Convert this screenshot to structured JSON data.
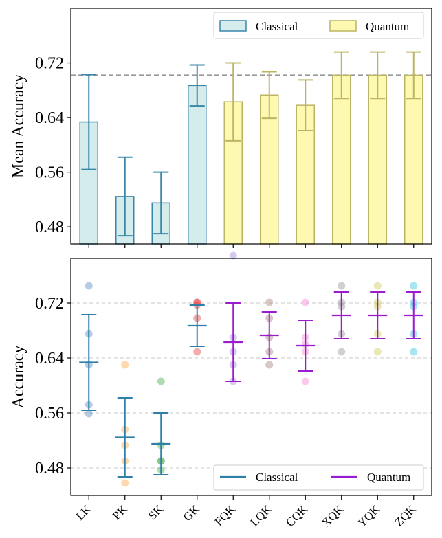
{
  "chart_data": [
    {
      "type": "bar",
      "title": "",
      "xlabel": "",
      "ylabel": "Mean Accuracy",
      "ylim": [
        0.455,
        0.8
      ],
      "yticks": [
        0.48,
        0.56,
        0.64,
        0.72
      ],
      "ytick_labels": [
        "0.48",
        "0.56",
        "0.64",
        "0.72"
      ],
      "categories": [
        "LK",
        "PK",
        "SK",
        "GK",
        "FQK",
        "LQK",
        "CQK",
        "XQK",
        "YQK",
        "ZQK"
      ],
      "groups": [
        "Classical",
        "Classical",
        "Classical",
        "Classical",
        "Quantum",
        "Quantum",
        "Quantum",
        "Quantum",
        "Quantum",
        "Quantum"
      ],
      "values": [
        0.6335,
        0.5245,
        0.515,
        0.687,
        0.663,
        0.673,
        0.658,
        0.702,
        0.702,
        0.702
      ],
      "errors": [
        0.0695,
        0.0575,
        0.045,
        0.03,
        0.057,
        0.034,
        0.037,
        0.034,
        0.034,
        0.034
      ],
      "reference_line": 0.702,
      "legend": {
        "position": "top-right",
        "entries": [
          "Classical",
          "Quantum"
        ]
      },
      "colors": {
        "classical_fill": "#d4eceb",
        "classical_edge": "#3a86a8",
        "quantum_fill": "#fdf9b0",
        "quantum_edge": "#bcb465",
        "ref_line": "#999999"
      }
    },
    {
      "type": "scatter",
      "title": "",
      "xlabel": "",
      "ylabel": "Accuracy",
      "ylim": [
        0.44,
        0.785
      ],
      "yticks": [
        0.48,
        0.56,
        0.64,
        0.72
      ],
      "ytick_labels": [
        "0.48",
        "0.56",
        "0.64",
        "0.72"
      ],
      "grid": "horizontal dashed",
      "categories": [
        "LK",
        "PK",
        "SK",
        "GK",
        "FQK",
        "LQK",
        "CQK",
        "XQK",
        "YQK",
        "ZQK"
      ],
      "groups": [
        "Classical",
        "Classical",
        "Classical",
        "Classical",
        "Quantum",
        "Quantum",
        "Quantum",
        "Quantum",
        "Quantum",
        "Quantum"
      ],
      "means": [
        0.6335,
        0.5245,
        0.515,
        0.687,
        0.663,
        0.673,
        0.658,
        0.702,
        0.702,
        0.702
      ],
      "errors": [
        0.0695,
        0.0575,
        0.045,
        0.03,
        0.057,
        0.034,
        0.037,
        0.034,
        0.034,
        0.034
      ],
      "points": [
        [
          0.745,
          0.675,
          0.63,
          0.572,
          0.559
        ],
        [
          0.63,
          0.536,
          0.513,
          0.49,
          0.458
        ],
        [
          0.606,
          0.513,
          0.49,
          0.49,
          0.477
        ],
        [
          0.721,
          0.721,
          0.717,
          0.698,
          0.649
        ],
        [
          0.789,
          0.67,
          0.649,
          0.63,
          0.606
        ],
        [
          0.721,
          0.698,
          0.67,
          0.649,
          0.63
        ],
        [
          0.721,
          0.67,
          0.66,
          0.649,
          0.606
        ],
        [
          0.745,
          0.721,
          0.715,
          0.675,
          0.649
        ],
        [
          0.745,
          0.721,
          0.715,
          0.675,
          0.649
        ],
        [
          0.745,
          0.721,
          0.715,
          0.675,
          0.649
        ]
      ],
      "point_colors": [
        "#5b8fc4",
        "#ffa94d",
        "#4fb04f",
        "#e64545",
        "#a98ad4",
        "#a88880",
        "#f28ad4",
        "#9a9a9a",
        "#cfcf5a",
        "#3cc8e0"
      ],
      "legend": {
        "position": "bottom-right",
        "entries": [
          "Classical",
          "Quantum"
        ]
      },
      "colors": {
        "classical_line": "#2f7fa8",
        "quantum_line": "#9a1ccf",
        "grid": "#c8c8c8"
      }
    }
  ]
}
